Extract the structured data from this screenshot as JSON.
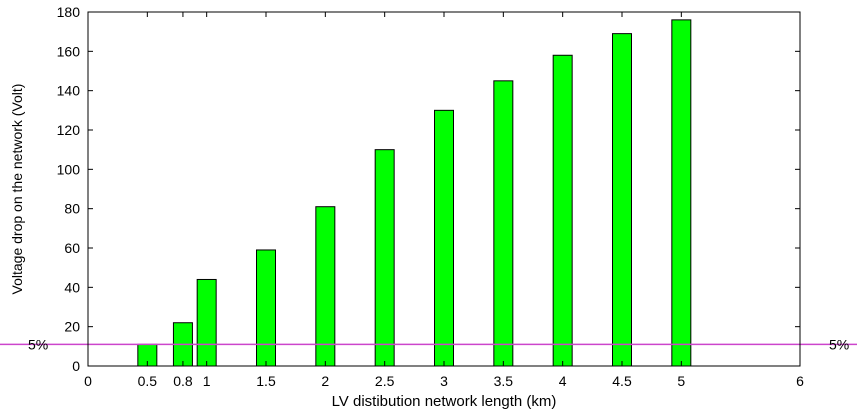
{
  "chart_data": {
    "type": "bar",
    "title": "",
    "xlabel": "LV distibution network length (km)",
    "ylabel": "Voltage drop on the network (Volt)",
    "x": [
      0.5,
      0.8,
      1,
      1.5,
      2,
      2.5,
      3,
      3.5,
      4,
      4.5,
      5
    ],
    "values": [
      11,
      22,
      44,
      59,
      81,
      110,
      130,
      145,
      158,
      169,
      176
    ],
    "xlim": [
      0,
      6
    ],
    "ylim": [
      0,
      180
    ],
    "xticks": [
      0,
      0.5,
      0.8,
      1,
      1.5,
      2,
      2.5,
      3,
      3.5,
      4,
      4.5,
      5,
      6
    ],
    "xtick_labels": [
      "0",
      "0.5",
      "0.8",
      "1",
      "1.5",
      "2",
      "2.5",
      "3",
      "3.5",
      "4",
      "4.5",
      "5",
      "6"
    ],
    "yticks": [
      0,
      20,
      40,
      60,
      80,
      100,
      120,
      140,
      160,
      180
    ],
    "ytick_labels": [
      "0",
      "20",
      "40",
      "60",
      "80",
      "100",
      "120",
      "140",
      "160",
      "180"
    ],
    "bar_color": "#00ff00",
    "reference_line": {
      "y": 11,
      "label": "5%",
      "color": "#cc44cc"
    },
    "grid": false,
    "legend": "none"
  }
}
